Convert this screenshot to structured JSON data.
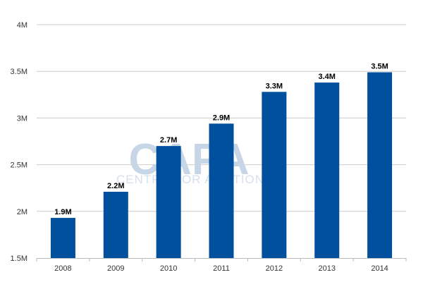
{
  "chart_data": {
    "type": "bar",
    "title": "",
    "xlabel": "",
    "ylabel": "",
    "categories": [
      "2008",
      "2009",
      "2010",
      "2011",
      "2012",
      "2013",
      "2014"
    ],
    "values": [
      1.93,
      2.21,
      2.7,
      2.94,
      3.28,
      3.38,
      3.49
    ],
    "data_labels": [
      "1.9M",
      "2.2M",
      "2.7M",
      "2.9M",
      "3.3M",
      "3.4M",
      "3.5M"
    ],
    "ylim": [
      1.5,
      4
    ],
    "yticks": [
      1.5,
      2,
      2.5,
      3,
      3.5,
      4
    ],
    "ytick_labels": [
      "1.5M",
      "2M",
      "2.5M",
      "3M",
      "3.5M",
      "4M"
    ],
    "grid": true,
    "bar_color": "#00509e",
    "grid_color": "#cccccc"
  },
  "watermark": {
    "logo_text": "CAPA",
    "subtitle": "CENTRE FOR AVIATION"
  }
}
